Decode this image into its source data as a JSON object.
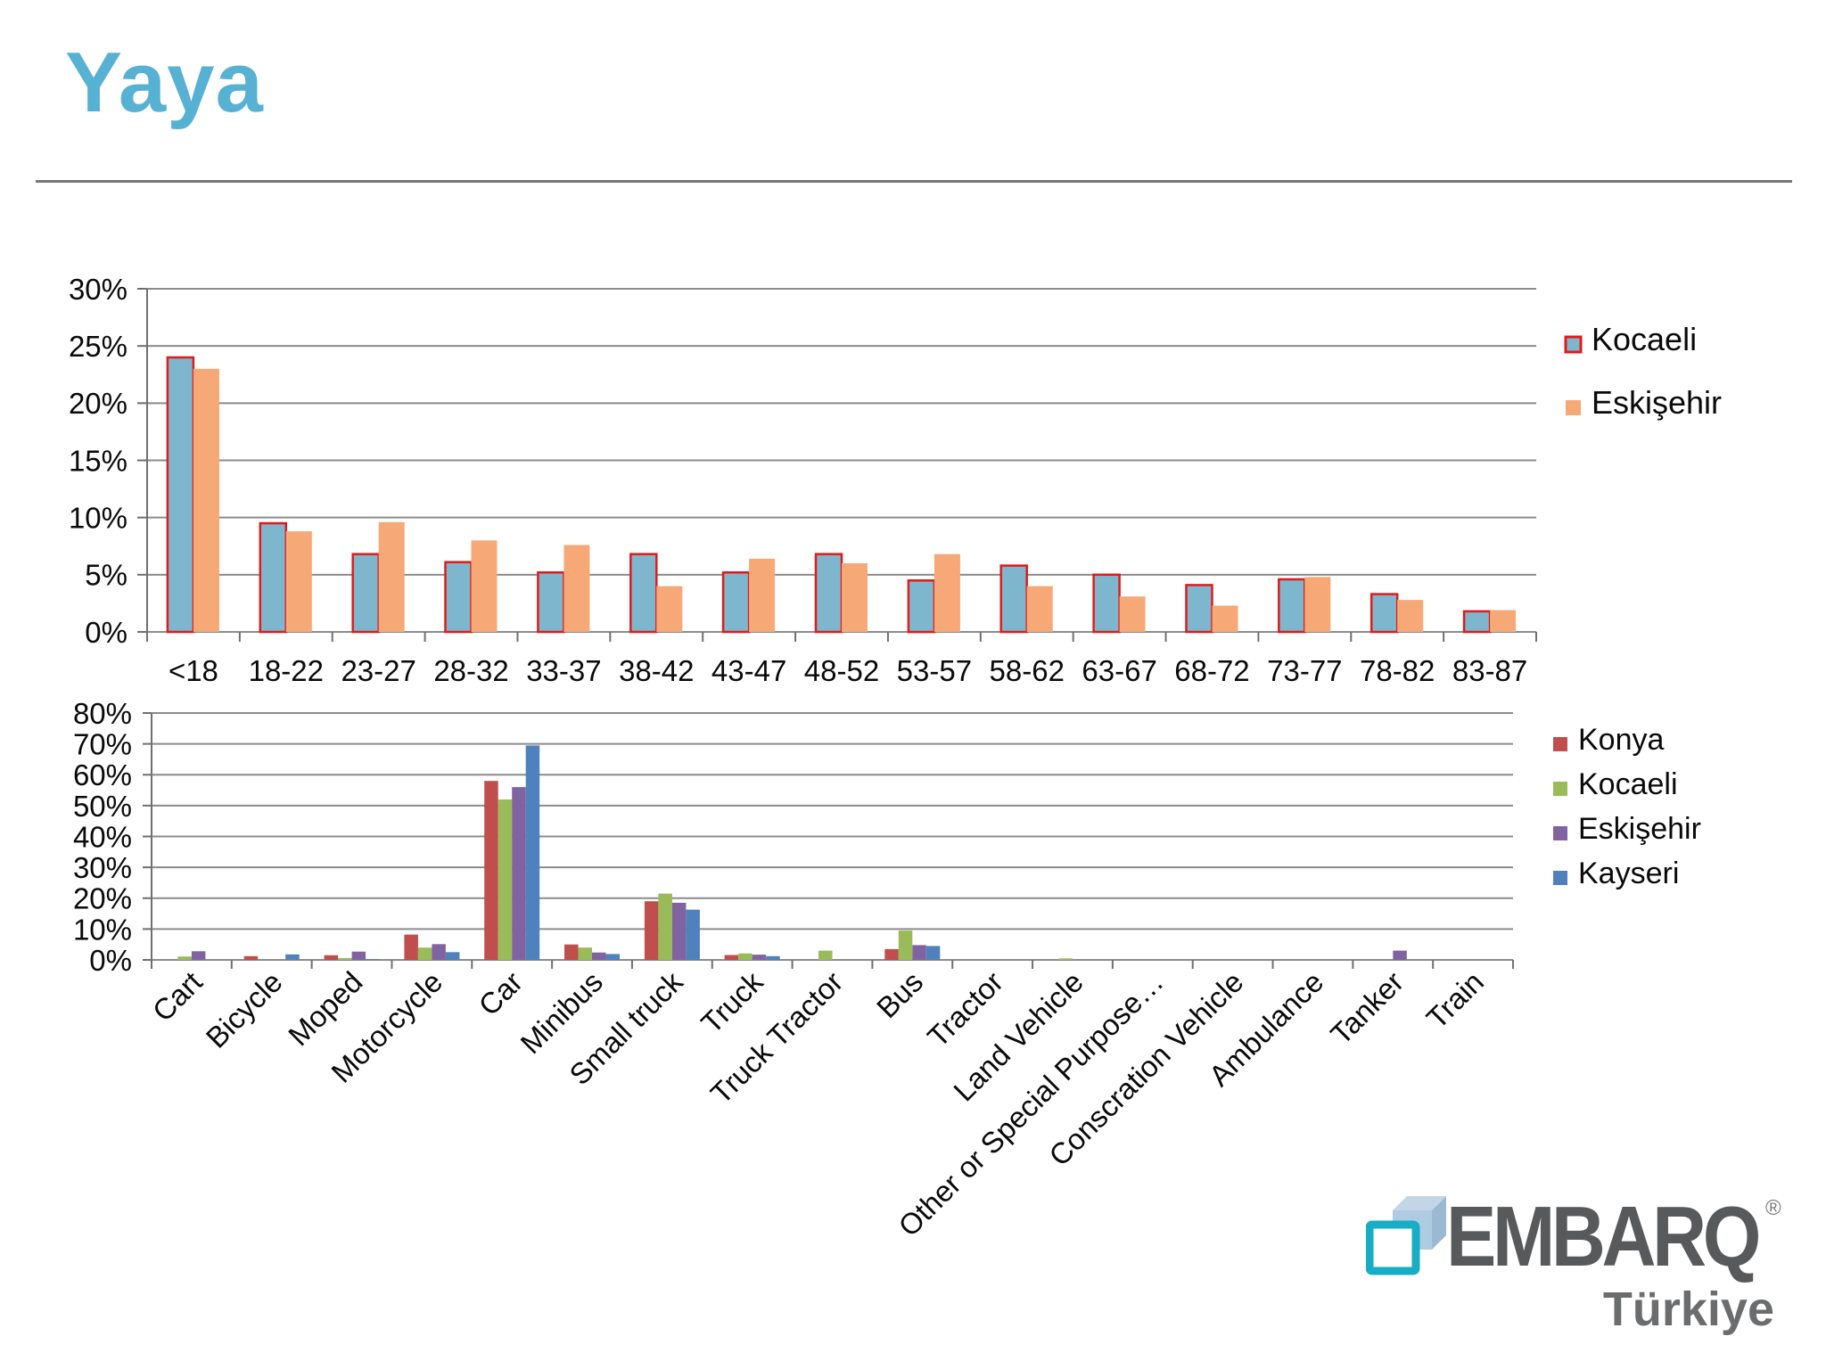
{
  "slide": {
    "title": "Yaya"
  },
  "logo": {
    "brand": "EMBARQ",
    "registered": "®",
    "country": "Türkiye"
  },
  "chart_data": [
    {
      "type": "bar",
      "name": "pedestrian-age-distribution",
      "title": "",
      "xlabel": "",
      "ylabel": "",
      "categories": [
        "<18",
        "18-22",
        "23-27",
        "28-32",
        "33-37",
        "38-42",
        "43-47",
        "48-52",
        "53-57",
        "58-62",
        "63-67",
        "68-72",
        "73-77",
        "78-82",
        "83-87"
      ],
      "series": [
        {
          "name": "Kocaeli",
          "color": "#7EB7CD",
          "border_color": "#E21A1A",
          "values": [
            24,
            9.5,
            6.8,
            6.1,
            5.2,
            6.8,
            5.2,
            6.8,
            4.5,
            5.8,
            5.0,
            4.1,
            4.6,
            3.3,
            1.8
          ]
        },
        {
          "name": "Eskişehir",
          "color": "#F6A977",
          "values": [
            23,
            8.8,
            9.6,
            8.0,
            7.6,
            4.0,
            6.4,
            6.0,
            6.8,
            4.0,
            3.1,
            2.3,
            4.8,
            2.8,
            1.9
          ]
        }
      ],
      "ylim": [
        0,
        30
      ],
      "ytick_step": 5,
      "ytick_format": "percent",
      "grid": true,
      "legend_position": "right"
    },
    {
      "type": "bar",
      "name": "vehicle-type-distribution",
      "title": "",
      "xlabel": "",
      "ylabel": "",
      "categories": [
        "Cart",
        "Bicycle",
        "Moped",
        "Motorcycle",
        "Car",
        "Minibus",
        "Small truck",
        "Truck",
        "Truck Tractor",
        "Bus",
        "Tractor",
        "Land Vehicle",
        "Other or Special Purpose…",
        "Conscration Vehicle",
        "Ambulance",
        "Tanker",
        "Train"
      ],
      "series": [
        {
          "name": "Konya",
          "color": "#BF4E4C",
          "values": [
            0,
            1.2,
            1.5,
            8.2,
            58,
            5.0,
            19.0,
            1.6,
            0,
            3.5,
            0,
            0,
            0,
            0,
            0,
            0,
            0
          ]
        },
        {
          "name": "Kocaeli",
          "color": "#9ABB59",
          "values": [
            1.1,
            0,
            0.6,
            4.0,
            52,
            4.0,
            21.5,
            2.1,
            3.0,
            9.5,
            0,
            0.5,
            0,
            0,
            0,
            0,
            0
          ]
        },
        {
          "name": "Eskişehir",
          "color": "#8064A2",
          "values": [
            2.8,
            0,
            2.7,
            5.1,
            56,
            2.4,
            18.5,
            1.7,
            0,
            4.8,
            0,
            0,
            0,
            0,
            0,
            3.0,
            0
          ]
        },
        {
          "name": "Kayseri",
          "color": "#4F81BD",
          "values": [
            0,
            1.8,
            0.3,
            2.5,
            69.5,
            1.9,
            16.3,
            1.2,
            0,
            4.5,
            0,
            0,
            0,
            0,
            0,
            0,
            0
          ]
        }
      ],
      "ylim": [
        0,
        80
      ],
      "ytick_step": 10,
      "ytick_format": "percent",
      "grid": true,
      "legend_position": "right"
    }
  ]
}
